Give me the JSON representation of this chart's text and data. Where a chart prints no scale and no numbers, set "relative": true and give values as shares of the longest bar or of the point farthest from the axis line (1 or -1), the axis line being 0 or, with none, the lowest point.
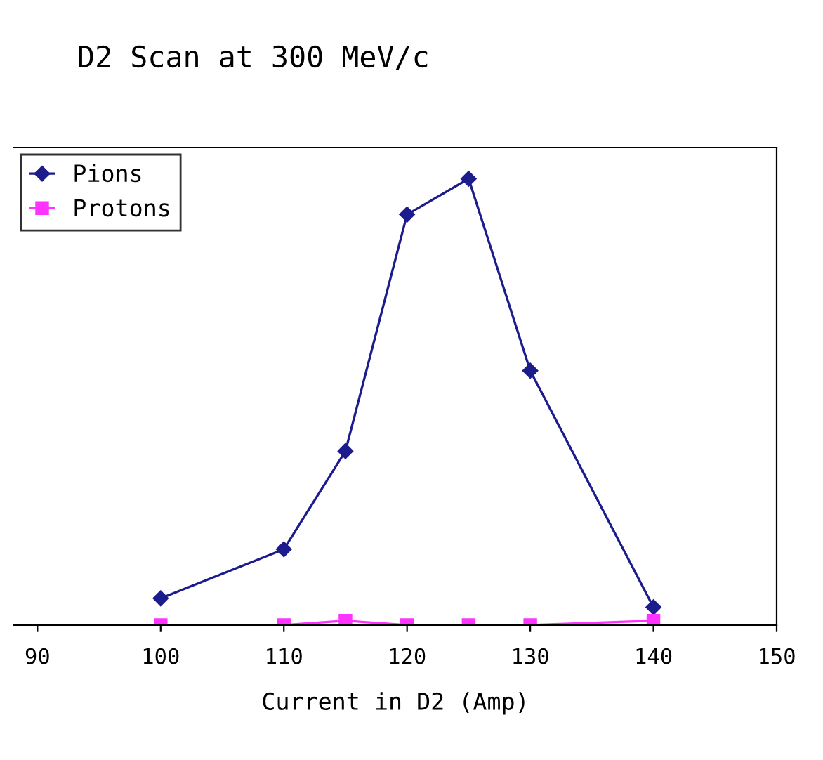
{
  "chart_data": {
    "type": "line",
    "title": "D2 Scan at 300 MeV/c",
    "xlabel": "Current in D2 (Amp)",
    "relative": true,
    "xlim": [
      88.1,
      150
    ],
    "xticks": [
      90,
      100,
      110,
      120,
      130,
      140,
      150
    ],
    "grid": false,
    "legend": "top left",
    "line_style": "solid",
    "series": [
      {
        "name": "Pions",
        "color": "#1c1c8c",
        "marker": "diamond",
        "x": [
          100,
          110,
          115,
          120,
          125,
          130,
          140
        ],
        "values": [
          0.06,
          0.17,
          0.39,
          0.92,
          1,
          0.57,
          0.04
        ]
      },
      {
        "name": "Protons",
        "color": "#ff33ff",
        "marker": "square",
        "x": [
          100,
          110,
          115,
          120,
          125,
          130,
          140
        ],
        "values": [
          0,
          0,
          0.01,
          0,
          0,
          0,
          0.01
        ]
      }
    ]
  }
}
